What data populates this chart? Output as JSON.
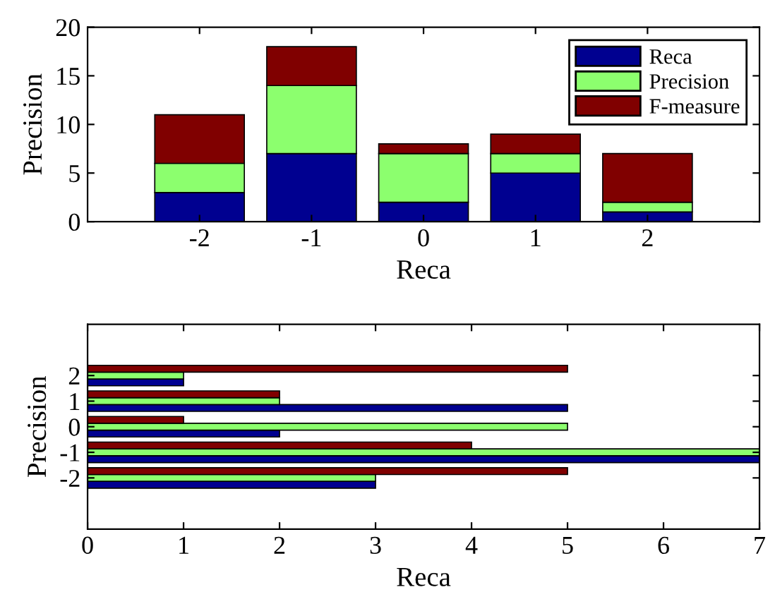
{
  "chart_data": [
    {
      "type": "bar",
      "stacked": true,
      "xlabel": "Reca",
      "ylabel": "Precision",
      "x": [
        -2,
        -1,
        0,
        1,
        2
      ],
      "xlim": [
        -3,
        3
      ],
      "xticks": [
        -2,
        -1,
        0,
        1,
        2
      ],
      "ylim": [
        0,
        20
      ],
      "yticks": [
        0,
        5,
        10,
        15,
        20
      ],
      "legend": "top right",
      "grid": false,
      "series": [
        {
          "name": "Reca",
          "color": "#000090",
          "values": [
            3,
            7,
            2,
            5,
            1
          ]
        },
        {
          "name": "Precision",
          "color": "#8cff6e",
          "values": [
            3,
            7,
            5,
            2,
            1
          ]
        },
        {
          "name": "F-measure",
          "color": "#800000",
          "values": [
            5,
            4,
            1,
            2,
            5
          ]
        }
      ]
    },
    {
      "type": "bar",
      "orientation": "horizontal",
      "xlabel": "Reca",
      "ylabel": "Precision",
      "x": [
        -2,
        -1,
        0,
        1,
        2
      ],
      "ylim": [
        -4,
        4
      ],
      "yticks": [
        -2,
        -1,
        0,
        1,
        2
      ],
      "xlim": [
        0,
        7
      ],
      "xticks": [
        0,
        1,
        2,
        3,
        4,
        5,
        6,
        7
      ],
      "grid": false,
      "series": [
        {
          "color": "#000090",
          "values": [
            3,
            7,
            2,
            5,
            1
          ]
        },
        {
          "color": "#8cff6e",
          "values": [
            3,
            7,
            5,
            2,
            1
          ]
        },
        {
          "color": "#800000",
          "values": [
            5,
            4,
            1,
            2,
            5
          ]
        }
      ]
    }
  ]
}
